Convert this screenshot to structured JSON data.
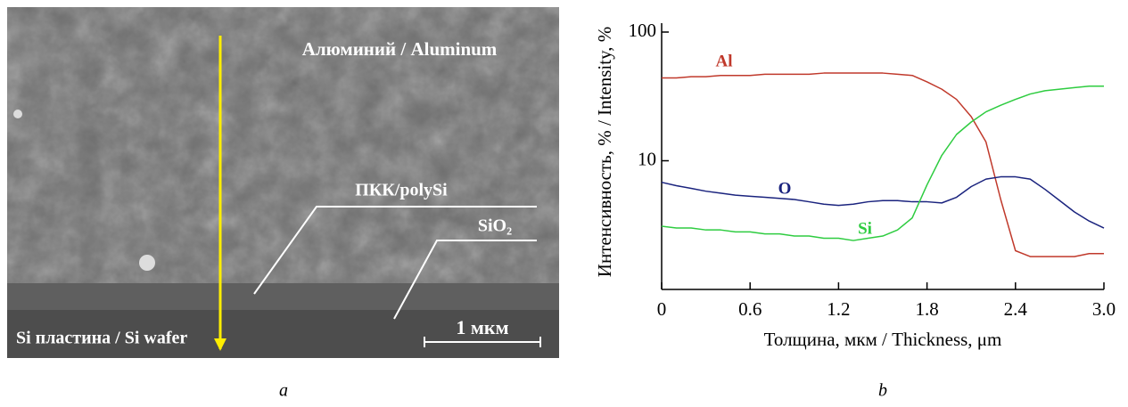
{
  "sem_image": {
    "aluminum_label": "Алюминий / Aluminum",
    "polysi_label": "ПКК/polySi",
    "sio2_label": "SiO₂",
    "wafer_label": "Si пластина / Si wafer",
    "scale_bar_label": "1 мкм",
    "caption": "a"
  },
  "chart_caption": "b",
  "chart_data": {
    "type": "line",
    "xlabel": "Толщина, мкм / Thickness, μm",
    "ylabel": "Интенсивность, % / Intensity, %",
    "log_y": true,
    "xlim": [
      0,
      3
    ],
    "xticks": [
      0,
      0.6,
      1.2,
      1.8,
      2.4,
      {
        "value": 3,
        "label": "3.0"
      }
    ],
    "ylim": [
      1,
      100
    ],
    "yticks": [
      10,
      100
    ],
    "x": [
      0,
      0.1,
      0.2,
      0.3,
      0.4,
      0.5,
      0.6,
      0.7,
      0.8,
      0.9,
      1.0,
      1.1,
      1.2,
      1.3,
      1.4,
      1.5,
      1.6,
      1.7,
      1.8,
      1.9,
      2.0,
      2.1,
      2.2,
      2.3,
      2.4,
      2.5,
      2.6,
      2.7,
      2.8,
      2.9,
      3.0
    ],
    "series": [
      {
        "name": "Al",
        "color": "#c0392b",
        "values": [
          44,
          44,
          45,
          45,
          46,
          46,
          46,
          47,
          47,
          47,
          47,
          48,
          48,
          48,
          48,
          48,
          47,
          46,
          41,
          36,
          30,
          22,
          14,
          5,
          2.0,
          1.8,
          1.8,
          1.8,
          1.8,
          1.9,
          1.9
        ]
      },
      {
        "name": "O",
        "color": "#1a237e",
        "values": [
          6.8,
          6.4,
          6.1,
          5.8,
          5.6,
          5.4,
          5.3,
          5.2,
          5.1,
          5.0,
          4.8,
          4.6,
          4.5,
          4.6,
          4.8,
          4.9,
          4.9,
          4.8,
          4.8,
          4.7,
          5.2,
          6.3,
          7.2,
          7.5,
          7.5,
          7.2,
          6.0,
          4.9,
          4.0,
          3.4,
          3.0
        ]
      },
      {
        "name": "Si",
        "color": "#2ecc40",
        "values": [
          3.1,
          3.0,
          3.0,
          2.9,
          2.9,
          2.8,
          2.8,
          2.7,
          2.7,
          2.6,
          2.6,
          2.5,
          2.5,
          2.4,
          2.5,
          2.6,
          2.9,
          3.6,
          6.5,
          11,
          16,
          20,
          24,
          27,
          30,
          33,
          35,
          36,
          37,
          38,
          38
        ]
      }
    ]
  }
}
